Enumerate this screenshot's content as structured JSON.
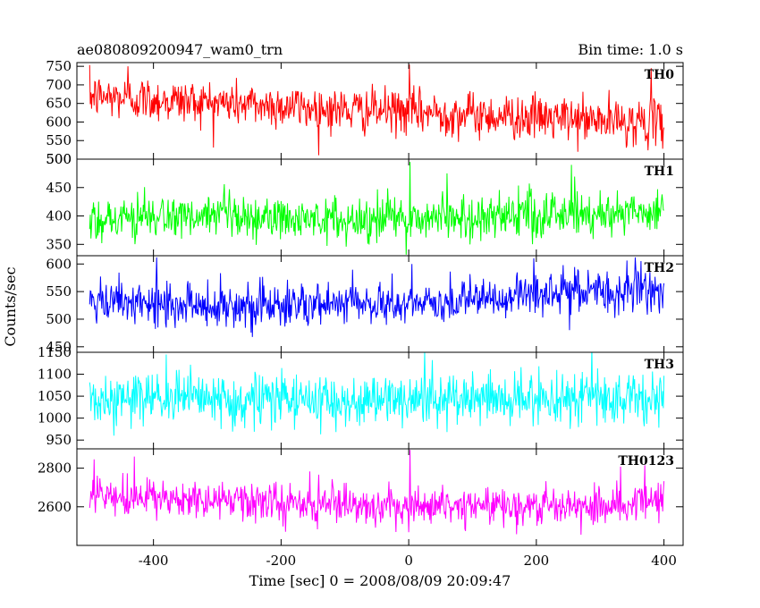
{
  "header": {
    "title": "ae080809200947_wam0_trn",
    "bin_time": "Bin time: 1.0 s"
  },
  "axes": {
    "xlabel": "Time [sec] 0 = 2008/08/09 20:09:47",
    "ylabel": "Counts/sec",
    "xlim": [
      -520,
      430
    ],
    "xticks": [
      -400,
      -200,
      0,
      200,
      400
    ]
  },
  "chart_data": {
    "type": "line",
    "title": "ae080809200947_wam0_trn",
    "xlabel": "Time [sec] 0 = 2008/08/09 20:09:47",
    "ylabel": "Counts/sec",
    "bin_time_s": 1.0,
    "x_range": [
      -500,
      400
    ],
    "grid": false,
    "panels": [
      {
        "name": "TH0",
        "color": "#ff0000",
        "ylim": [
          500,
          760
        ],
        "yticks": [
          500,
          550,
          600,
          650,
          700,
          750
        ],
        "trend_x": [
          -500,
          -400,
          -300,
          -200,
          -100,
          0,
          100,
          200,
          300,
          400
        ],
        "trend_y": [
          670,
          660,
          652,
          643,
          632,
          628,
          620,
          612,
          603,
          598
        ],
        "noise_sd": 30,
        "spikes": [
          {
            "x": 1,
            "y": 755
          },
          {
            "x": 380,
            "y": 745
          },
          {
            "x": -440,
            "y": 750
          }
        ]
      },
      {
        "name": "TH1",
        "color": "#00ff00",
        "ylim": [
          330,
          500
        ],
        "yticks": [
          350,
          400,
          450,
          500
        ],
        "trend_x": [
          -500,
          -400,
          -300,
          -200,
          -100,
          0,
          100,
          200,
          300,
          400
        ],
        "trend_y": [
          395,
          398,
          396,
          394,
          393,
          396,
          398,
          402,
          405,
          410
        ],
        "noise_sd": 20,
        "spikes": [
          {
            "x": 2,
            "y": 495
          },
          {
            "x": 255,
            "y": 490
          },
          {
            "x": 60,
            "y": 475
          }
        ]
      },
      {
        "name": "TH2",
        "color": "#0000ff",
        "ylim": [
          440,
          615
        ],
        "yticks": [
          450,
          500,
          550,
          600
        ],
        "trend_x": [
          -500,
          -400,
          -300,
          -200,
          -100,
          0,
          100,
          200,
          300,
          400
        ],
        "trend_y": [
          527,
          527,
          526,
          525,
          526,
          528,
          532,
          545,
          552,
          548
        ],
        "noise_sd": 20,
        "spikes": [
          {
            "x": 355,
            "y": 612
          },
          {
            "x": -395,
            "y": 612
          },
          {
            "x": 5,
            "y": 600
          }
        ]
      },
      {
        "name": "TH3",
        "color": "#00ffff",
        "ylim": [
          930,
          1150
        ],
        "yticks": [
          950,
          1000,
          1050,
          1100,
          1150
        ],
        "trend_x": [
          -500,
          -400,
          -300,
          -200,
          -100,
          0,
          100,
          200,
          300,
          400
        ],
        "trend_y": [
          1042,
          1043,
          1042,
          1041,
          1041,
          1042,
          1043,
          1044,
          1045,
          1046
        ],
        "noise_sd": 30,
        "spikes": [
          {
            "x": 25,
            "y": 1150
          },
          {
            "x": -380,
            "y": 1145
          }
        ]
      },
      {
        "name": "TH0123",
        "color": "#ff00ff",
        "ylim": [
          2400,
          2900
        ],
        "yticks": [
          2600,
          2800
        ],
        "trend_x": [
          -500,
          -400,
          -300,
          -200,
          -100,
          0,
          100,
          200,
          300,
          400
        ],
        "trend_y": [
          2650,
          2640,
          2630,
          2615,
          2605,
          2610,
          2610,
          2605,
          2615,
          2630
        ],
        "noise_sd": 50,
        "spikes": [
          {
            "x": 2,
            "y": 2895
          },
          {
            "x": -430,
            "y": 2860
          },
          {
            "x": 370,
            "y": 2815
          }
        ]
      }
    ]
  }
}
